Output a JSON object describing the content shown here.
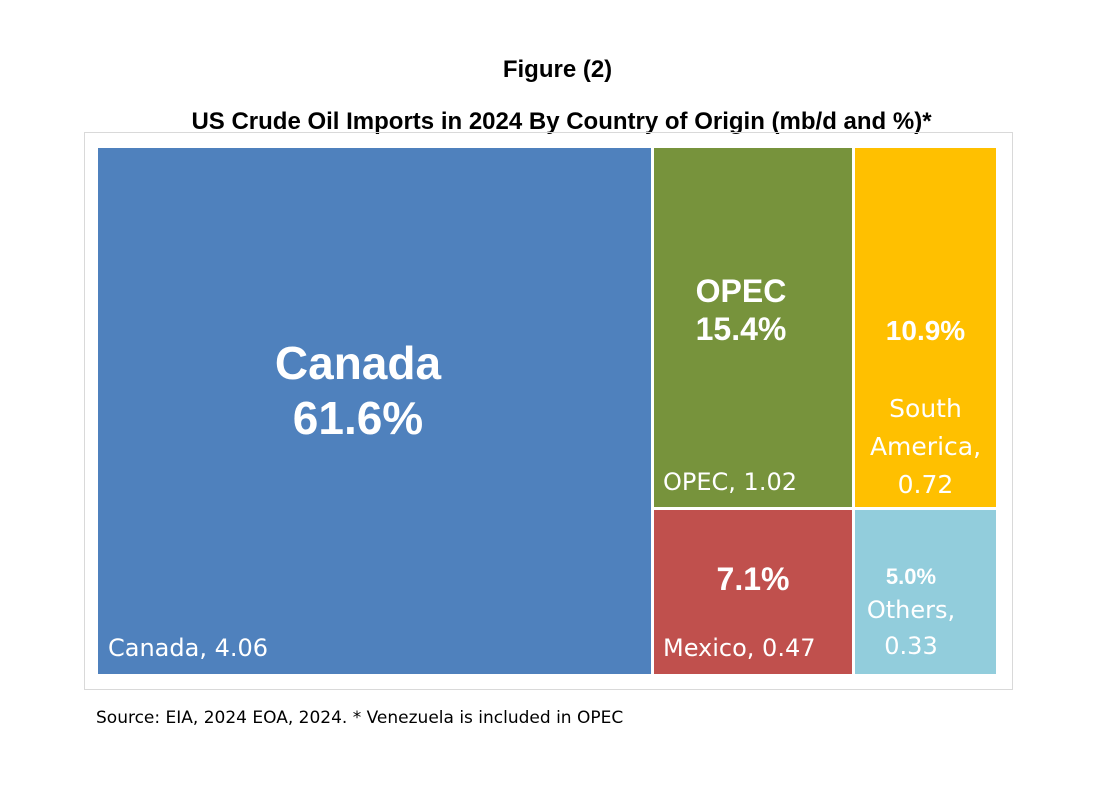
{
  "figure_label": "Figure (2)",
  "source_note": "Source: EIA, 2024  EOA, 2024. * Venezuela is included in OPEC",
  "chart_data": {
    "type": "treemap",
    "title": "US Crude Oil Imports in 2024 By Country of Origin (mb/d and %)*",
    "items": [
      {
        "name": "Canada",
        "value": 4.06,
        "percent": "61.6%",
        "big_label": "Canada",
        "label": "Canada, 4.06",
        "color": "#4f81bd"
      },
      {
        "name": "OPEC",
        "value": 1.02,
        "percent": "15.4%",
        "big_label": "OPEC",
        "label": "OPEC, 1.02",
        "color": "#77933c"
      },
      {
        "name": "South America",
        "value": 0.72,
        "percent": "10.9%",
        "label_line1": "South",
        "label_line2": "America,",
        "label_line3": "0.72",
        "color": "#ffc000"
      },
      {
        "name": "Mexico",
        "value": 0.47,
        "percent": "7.1%",
        "label": "Mexico, 0.47",
        "color": "#c0504d"
      },
      {
        "name": "Others",
        "value": 0.33,
        "percent": "5.0%",
        "label_line1": "Others,",
        "label_line2": "0.33",
        "color": "#92cddc"
      }
    ]
  }
}
